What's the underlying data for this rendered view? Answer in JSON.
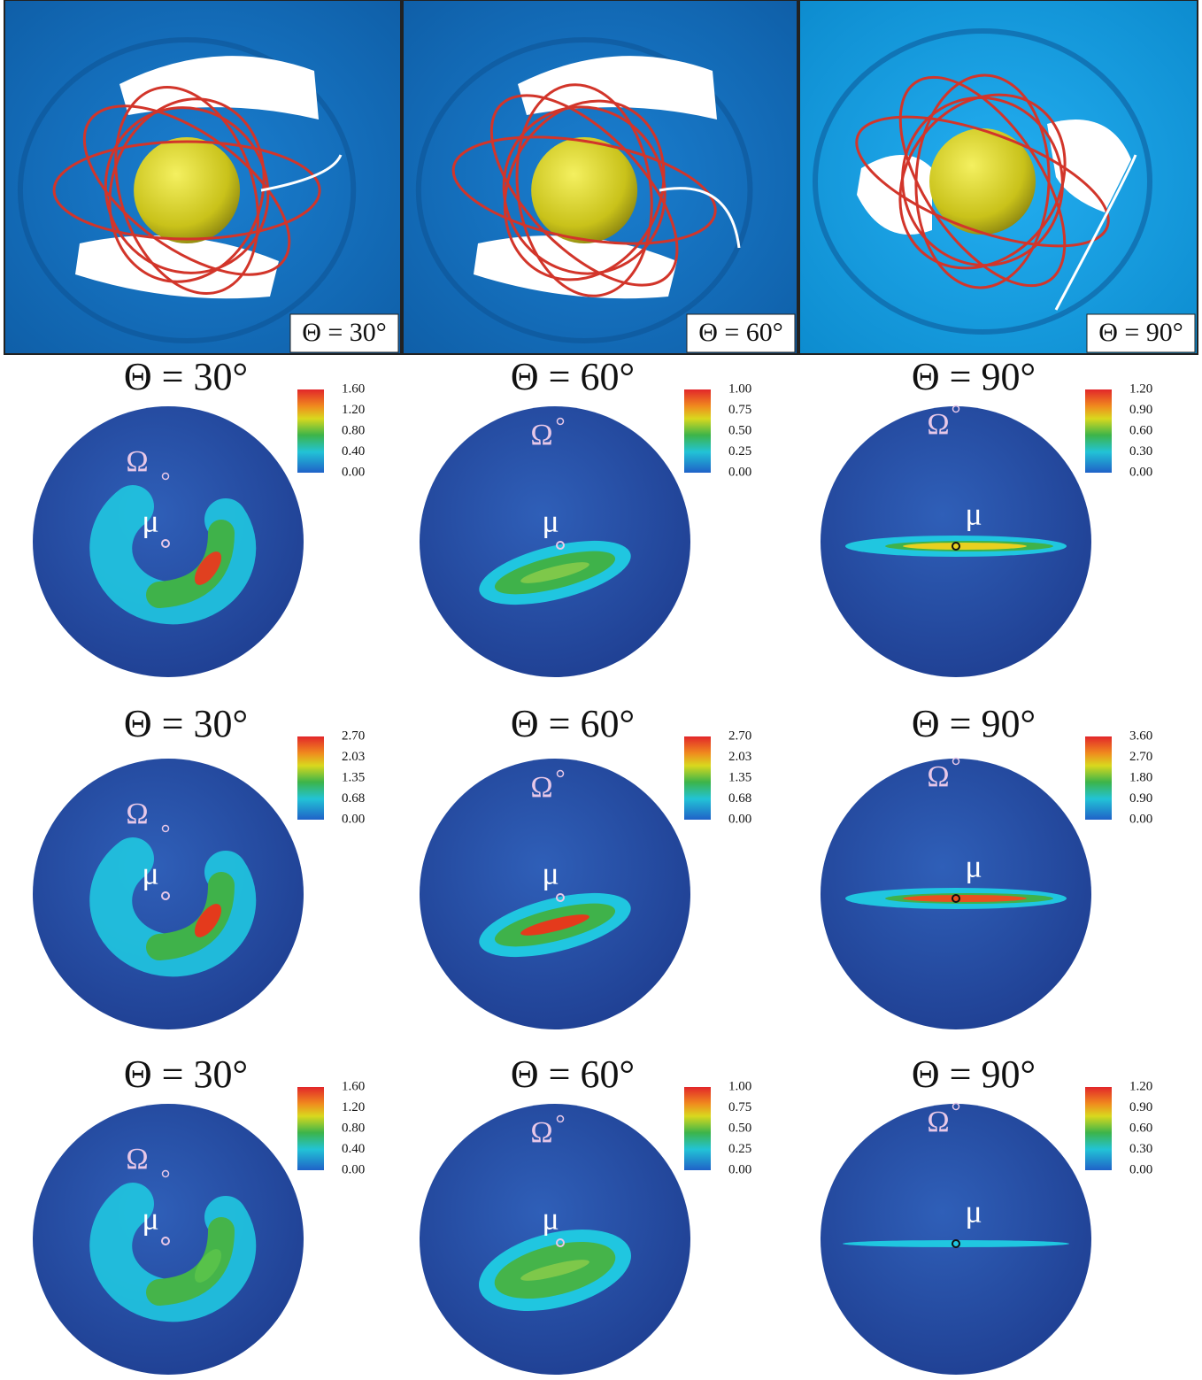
{
  "top_panels": [
    {
      "label": "Θ = 30°"
    },
    {
      "label": "Θ = 60°"
    },
    {
      "label": "Θ = 90°"
    }
  ],
  "panels": [
    [
      {
        "title": "Θ = 30°",
        "colorbar": [
          "1.60",
          "1.20",
          "0.80",
          "0.40",
          "0.00"
        ],
        "omega": "Ω",
        "mu": "μ"
      },
      {
        "title": "Θ = 60°",
        "colorbar": [
          "1.00",
          "0.75",
          "0.50",
          "0.25",
          "0.00"
        ],
        "omega": "Ω",
        "mu": "μ"
      },
      {
        "title": "Θ = 90°",
        "colorbar": [
          "1.20",
          "0.90",
          "0.60",
          "0.30",
          "0.00"
        ],
        "omega": "Ω",
        "mu": "μ"
      }
    ],
    [
      {
        "title": "Θ = 30°",
        "colorbar": [
          "2.70",
          "2.03",
          "1.35",
          "0.68",
          "0.00"
        ],
        "omega": "Ω",
        "mu": "μ"
      },
      {
        "title": "Θ = 60°",
        "colorbar": [
          "2.70",
          "2.03",
          "1.35",
          "0.68",
          "0.00"
        ],
        "omega": "Ω",
        "mu": "μ"
      },
      {
        "title": "Θ = 90°",
        "colorbar": [
          "3.60",
          "2.70",
          "1.80",
          "0.90",
          "0.00"
        ],
        "omega": "Ω",
        "mu": "μ"
      }
    ],
    [
      {
        "title": "Θ = 30°",
        "colorbar": [
          "1.60",
          "1.20",
          "0.80",
          "0.40",
          "0.00"
        ],
        "omega": "Ω",
        "mu": "μ"
      },
      {
        "title": "Θ = 60°",
        "colorbar": [
          "1.00",
          "0.75",
          "0.50",
          "0.25",
          "0.00"
        ],
        "omega": "Ω",
        "mu": "μ"
      },
      {
        "title": "Θ = 90°",
        "colorbar": [
          "1.20",
          "0.90",
          "0.60",
          "0.30",
          "0.00"
        ],
        "omega": "Ω",
        "mu": "μ"
      }
    ]
  ]
}
